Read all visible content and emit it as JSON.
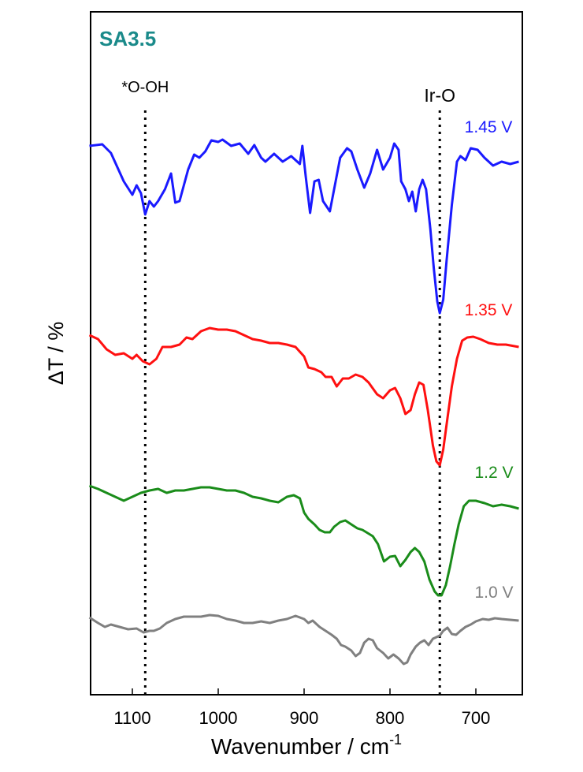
{
  "chart_data": {
    "type": "line",
    "title": "SA3.5",
    "title_color": "#1a8a8a",
    "xlabel": "Wavenumber / cm",
    "xlabel_superscript": "-1",
    "ylabel": "ΔT / %",
    "xlim": [
      1150,
      650
    ],
    "x_reversed": true,
    "x_ticks": [
      1100,
      1000,
      900,
      800,
      700
    ],
    "y_ticks": "none",
    "grid": false,
    "annotations": [
      {
        "label": "*O-OH",
        "x": 1085,
        "line": "dotted"
      },
      {
        "label": "Ir-O",
        "x": 742,
        "line": "dotted"
      }
    ],
    "series": [
      {
        "name": "1.45 V",
        "color": "#1a1aff",
        "points": [
          [
            1150,
            185
          ],
          [
            1135,
            183
          ],
          [
            1125,
            194
          ],
          [
            1110,
            230
          ],
          [
            1100,
            247
          ],
          [
            1095,
            235
          ],
          [
            1090,
            245
          ],
          [
            1085,
            272
          ],
          [
            1080,
            255
          ],
          [
            1075,
            262
          ],
          [
            1070,
            255
          ],
          [
            1062,
            240
          ],
          [
            1055,
            220
          ],
          [
            1050,
            257
          ],
          [
            1045,
            255
          ],
          [
            1035,
            215
          ],
          [
            1028,
            196
          ],
          [
            1022,
            200
          ],
          [
            1015,
            192
          ],
          [
            1008,
            178
          ],
          [
            1000,
            180
          ],
          [
            995,
            177
          ],
          [
            985,
            185
          ],
          [
            975,
            182
          ],
          [
            965,
            195
          ],
          [
            958,
            184
          ],
          [
            950,
            200
          ],
          [
            945,
            205
          ],
          [
            935,
            195
          ],
          [
            925,
            205
          ],
          [
            915,
            198
          ],
          [
            905,
            208
          ],
          [
            902,
            185
          ],
          [
            898,
            225
          ],
          [
            893,
            270
          ],
          [
            888,
            230
          ],
          [
            883,
            228
          ],
          [
            878,
            255
          ],
          [
            870,
            268
          ],
          [
            865,
            240
          ],
          [
            858,
            200
          ],
          [
            850,
            188
          ],
          [
            845,
            192
          ],
          [
            838,
            215
          ],
          [
            830,
            238
          ],
          [
            823,
            220
          ],
          [
            815,
            190
          ],
          [
            808,
            215
          ],
          [
            800,
            200
          ],
          [
            795,
            182
          ],
          [
            790,
            190
          ],
          [
            787,
            230
          ],
          [
            782,
            240
          ],
          [
            778,
            255
          ],
          [
            774,
            243
          ],
          [
            770,
            268
          ],
          [
            766,
            240
          ],
          [
            762,
            228
          ],
          [
            758,
            240
          ],
          [
            753,
            290
          ],
          [
            749,
            340
          ],
          [
            745,
            382
          ],
          [
            742,
            397
          ],
          [
            738,
            380
          ],
          [
            734,
            330
          ],
          [
            728,
            260
          ],
          [
            722,
            205
          ],
          [
            718,
            198
          ],
          [
            712,
            203
          ],
          [
            706,
            188
          ],
          [
            698,
            190
          ],
          [
            690,
            200
          ],
          [
            680,
            210
          ],
          [
            670,
            205
          ],
          [
            660,
            208
          ],
          [
            650,
            205
          ]
        ]
      },
      {
        "name": "1.35 V",
        "color": "#ff1010",
        "points": [
          [
            1150,
            425
          ],
          [
            1140,
            430
          ],
          [
            1130,
            443
          ],
          [
            1120,
            450
          ],
          [
            1110,
            448
          ],
          [
            1100,
            455
          ],
          [
            1095,
            450
          ],
          [
            1088,
            458
          ],
          [
            1080,
            462
          ],
          [
            1072,
            455
          ],
          [
            1065,
            440
          ],
          [
            1055,
            440
          ],
          [
            1045,
            437
          ],
          [
            1037,
            428
          ],
          [
            1030,
            430
          ],
          [
            1020,
            420
          ],
          [
            1010,
            416
          ],
          [
            1000,
            418
          ],
          [
            990,
            418
          ],
          [
            980,
            420
          ],
          [
            970,
            425
          ],
          [
            960,
            430
          ],
          [
            950,
            432
          ],
          [
            940,
            435
          ],
          [
            930,
            435
          ],
          [
            920,
            437
          ],
          [
            910,
            440
          ],
          [
            900,
            452
          ],
          [
            895,
            466
          ],
          [
            888,
            468
          ],
          [
            880,
            472
          ],
          [
            875,
            478
          ],
          [
            868,
            478
          ],
          [
            862,
            490
          ],
          [
            855,
            480
          ],
          [
            848,
            480
          ],
          [
            840,
            475
          ],
          [
            832,
            478
          ],
          [
            825,
            485
          ],
          [
            815,
            500
          ],
          [
            808,
            505
          ],
          [
            800,
            495
          ],
          [
            794,
            492
          ],
          [
            788,
            505
          ],
          [
            782,
            525
          ],
          [
            776,
            520
          ],
          [
            771,
            500
          ],
          [
            766,
            485
          ],
          [
            761,
            488
          ],
          [
            756,
            520
          ],
          [
            750,
            565
          ],
          [
            746,
            585
          ],
          [
            742,
            590
          ],
          [
            738,
            570
          ],
          [
            733,
            530
          ],
          [
            728,
            490
          ],
          [
            722,
            455
          ],
          [
            716,
            432
          ],
          [
            710,
            428
          ],
          [
            703,
            427
          ],
          [
            695,
            430
          ],
          [
            685,
            435
          ],
          [
            675,
            437
          ],
          [
            665,
            437
          ],
          [
            650,
            440
          ]
        ]
      },
      {
        "name": "1.2 V",
        "color": "#1a8c1a",
        "points": [
          [
            1150,
            616
          ],
          [
            1140,
            620
          ],
          [
            1130,
            625
          ],
          [
            1120,
            630
          ],
          [
            1110,
            635
          ],
          [
            1100,
            630
          ],
          [
            1090,
            625
          ],
          [
            1080,
            622
          ],
          [
            1070,
            620
          ],
          [
            1060,
            625
          ],
          [
            1050,
            622
          ],
          [
            1040,
            622
          ],
          [
            1030,
            620
          ],
          [
            1020,
            618
          ],
          [
            1010,
            618
          ],
          [
            1000,
            620
          ],
          [
            990,
            622
          ],
          [
            980,
            622
          ],
          [
            970,
            625
          ],
          [
            960,
            630
          ],
          [
            950,
            632
          ],
          [
            940,
            635
          ],
          [
            930,
            637
          ],
          [
            920,
            630
          ],
          [
            912,
            628
          ],
          [
            905,
            632
          ],
          [
            900,
            650
          ],
          [
            895,
            658
          ],
          [
            888,
            665
          ],
          [
            882,
            672
          ],
          [
            876,
            675
          ],
          [
            870,
            675
          ],
          [
            865,
            668
          ],
          [
            858,
            662
          ],
          [
            852,
            660
          ],
          [
            845,
            665
          ],
          [
            838,
            670
          ],
          [
            832,
            672
          ],
          [
            826,
            676
          ],
          [
            820,
            680
          ],
          [
            814,
            690
          ],
          [
            807,
            712
          ],
          [
            800,
            706
          ],
          [
            794,
            705
          ],
          [
            788,
            718
          ],
          [
            782,
            710
          ],
          [
            776,
            700
          ],
          [
            771,
            695
          ],
          [
            766,
            700
          ],
          [
            760,
            712
          ],
          [
            754,
            735
          ],
          [
            748,
            750
          ],
          [
            744,
            755
          ],
          [
            740,
            755
          ],
          [
            735,
            742
          ],
          [
            730,
            718
          ],
          [
            725,
            690
          ],
          [
            720,
            665
          ],
          [
            714,
            642
          ],
          [
            708,
            635
          ],
          [
            700,
            635
          ],
          [
            690,
            638
          ],
          [
            680,
            642
          ],
          [
            670,
            640
          ],
          [
            660,
            642
          ],
          [
            650,
            645
          ]
        ]
      },
      {
        "name": "1.0 V",
        "color": "#808080",
        "points": [
          [
            1150,
            783
          ],
          [
            1140,
            790
          ],
          [
            1132,
            795
          ],
          [
            1125,
            792
          ],
          [
            1115,
            795
          ],
          [
            1105,
            798
          ],
          [
            1095,
            797
          ],
          [
            1087,
            802
          ],
          [
            1080,
            800
          ],
          [
            1075,
            800
          ],
          [
            1068,
            797
          ],
          [
            1060,
            790
          ],
          [
            1050,
            785
          ],
          [
            1040,
            782
          ],
          [
            1030,
            782
          ],
          [
            1020,
            782
          ],
          [
            1010,
            780
          ],
          [
            1000,
            781
          ],
          [
            990,
            785
          ],
          [
            980,
            787
          ],
          [
            970,
            790
          ],
          [
            960,
            790
          ],
          [
            950,
            788
          ],
          [
            940,
            790
          ],
          [
            930,
            787
          ],
          [
            920,
            785
          ],
          [
            910,
            781
          ],
          [
            900,
            785
          ],
          [
            895,
            790
          ],
          [
            890,
            787
          ],
          [
            882,
            795
          ],
          [
            875,
            800
          ],
          [
            868,
            805
          ],
          [
            862,
            810
          ],
          [
            857,
            818
          ],
          [
            852,
            820
          ],
          [
            845,
            825
          ],
          [
            840,
            832
          ],
          [
            835,
            828
          ],
          [
            830,
            815
          ],
          [
            825,
            810
          ],
          [
            820,
            812
          ],
          [
            815,
            822
          ],
          [
            808,
            828
          ],
          [
            802,
            835
          ],
          [
            796,
            830
          ],
          [
            790,
            835
          ],
          [
            784,
            842
          ],
          [
            780,
            840
          ],
          [
            776,
            830
          ],
          [
            770,
            820
          ],
          [
            765,
            815
          ],
          [
            760,
            812
          ],
          [
            755,
            818
          ],
          [
            750,
            810
          ],
          [
            746,
            808
          ],
          [
            742,
            806
          ],
          [
            738,
            800
          ],
          [
            733,
            796
          ],
          [
            728,
            804
          ],
          [
            723,
            805
          ],
          [
            718,
            800
          ],
          [
            712,
            795
          ],
          [
            706,
            792
          ],
          [
            700,
            788
          ],
          [
            692,
            785
          ],
          [
            685,
            786
          ],
          [
            678,
            784
          ],
          [
            670,
            785
          ],
          [
            660,
            786
          ],
          [
            650,
            787
          ]
        ]
      }
    ]
  }
}
